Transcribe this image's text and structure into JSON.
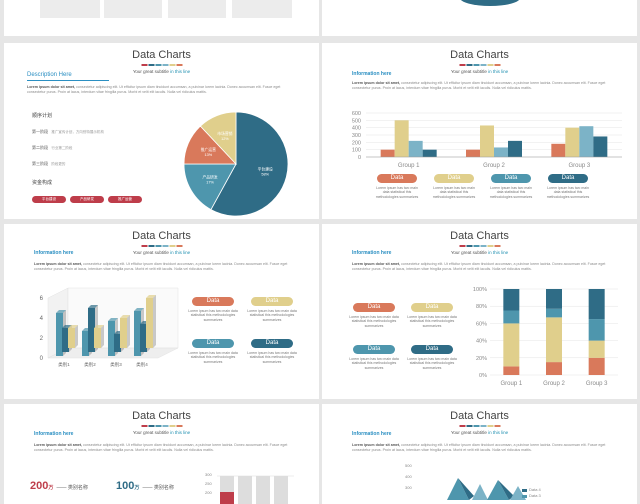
{
  "header": {
    "title": "Data Charts",
    "subtitle_prefix": "Your great subtitle",
    "subtitle_suffix": " in this line"
  },
  "palette": [
    "#be3d4a",
    "#2f6c86",
    "#4e96ad",
    "#7cb3c7",
    "#e0cf8c",
    "#d9795b"
  ],
  "lorem": {
    "lead": "Lorem ipsum dolor sit amet,",
    "body": " consectetur adipiscing elit. Ut efficitur ipsum diam tincidunt accumsan, a pulvinar lorem lacinia. Donec accumsan elit. Fusce eget consectetur purus. Proin at lacus, interdum vitae fringilla purus. Morbi et velit elit iaculis. Nulla vel ridiculus mattis."
  },
  "filler": "Lorem ipsum has two main data statistical this methodologies summarizes",
  "info_here": "Information here",
  "slide2": {
    "description": "Description Here",
    "section_label": "顺序计划",
    "steps": [
      {
        "name": "第一阶段",
        "text": "推广宣传计划，方向别特展示机构"
      },
      {
        "name": "第二阶段",
        "text": "行业第二阶段"
      },
      {
        "name": "第三阶段",
        "text": "阶段更的"
      }
    ],
    "tags_label": "资金构成",
    "tags": [
      "平台建设",
      "产品研发",
      "推广运营"
    ],
    "chart_data": {
      "type": "pie",
      "labels": [
        "平台建设",
        "产品研发",
        "推广运营",
        "市场营销"
      ],
      "values": [
        58,
        17,
        13,
        12
      ],
      "value_labels": [
        "58%",
        "17%",
        "13%",
        "12%"
      ],
      "colors": [
        "#2f6c86",
        "#4e96ad",
        "#d9795b",
        "#e0cf8c"
      ]
    }
  },
  "slide3": {
    "chart_data": {
      "type": "bar",
      "categories": [
        "Group 1",
        "Group 2",
        "Group 3"
      ],
      "ylim": [
        0,
        600
      ],
      "yticks": [
        "600",
        "500",
        "400",
        "300",
        "200",
        "100",
        "0"
      ],
      "series": [
        {
          "values": [
            100,
            100,
            180
          ],
          "color": "#d9795b"
        },
        {
          "values": [
            500,
            430,
            400
          ],
          "color": "#e0cf8c"
        },
        {
          "values": [
            220,
            130,
            420
          ],
          "color": "#7cb3c7"
        },
        {
          "values": [
            100,
            220,
            280
          ],
          "color": "#2f6c86"
        }
      ]
    },
    "pills": [
      {
        "label": "Data",
        "color": "#d9795b"
      },
      {
        "label": "Data",
        "color": "#e0cf8c"
      },
      {
        "label": "Data",
        "color": "#4e96ad"
      },
      {
        "label": "Data",
        "color": "#2f6c86"
      }
    ]
  },
  "slide4": {
    "chart_data": {
      "type": "bar",
      "categories": [
        "类别1",
        "类别2",
        "类别3",
        "类别4"
      ],
      "ylim": [
        0,
        6
      ],
      "yticks": [
        "6",
        "4",
        "2",
        "0"
      ],
      "series": [
        {
          "values": [
            4.3,
            2.5,
            3.5,
            4.5
          ],
          "color": "#4e96ad"
        },
        {
          "values": [
            2.4,
            4.4,
            1.8,
            2.8
          ],
          "color": "#2f6c86"
        },
        {
          "values": [
            2.0,
            2.0,
            3.0,
            5.0
          ],
          "color": "#e0cf8c"
        }
      ]
    },
    "pills": [
      {
        "label": "Data",
        "color": "#d9795b"
      },
      {
        "label": "Data",
        "color": "#e0cf8c"
      },
      {
        "label": "Data",
        "color": "#4e96ad"
      },
      {
        "label": "Data",
        "color": "#2f6c86"
      }
    ]
  },
  "slide5": {
    "chart_data": {
      "type": "bar",
      "categories": [
        "Group 1",
        "Group 2",
        "Group 3"
      ],
      "yticks": [
        "100%",
        "80%",
        "60%",
        "40%",
        "20%",
        "0%"
      ],
      "series": [
        {
          "values": [
            10,
            15,
            20
          ],
          "color": "#d9795b"
        },
        {
          "values": [
            50,
            52,
            20
          ],
          "color": "#e0cf8c"
        },
        {
          "values": [
            15,
            10,
            25
          ],
          "color": "#4e96ad"
        },
        {
          "values": [
            25,
            23,
            35
          ],
          "color": "#2f6c86"
        }
      ]
    },
    "pills": [
      {
        "label": "Data",
        "color": "#d9795b"
      },
      {
        "label": "Data",
        "color": "#e0cf8c"
      },
      {
        "label": "Data",
        "color": "#4e96ad"
      },
      {
        "label": "Data",
        "color": "#2f6c86"
      }
    ]
  },
  "slide6": {
    "stats": [
      {
        "value": "200",
        "unit": "万",
        "label": "—— 类别名称"
      },
      {
        "value": "100",
        "unit": "万",
        "label": "—— 类别名称"
      }
    ],
    "yticks": [
      "300",
      "250",
      "200"
    ]
  },
  "slide7": {
    "yticks": [
      "500",
      "400",
      "300"
    ],
    "legend": [
      "Data 4",
      "Data 3"
    ]
  }
}
